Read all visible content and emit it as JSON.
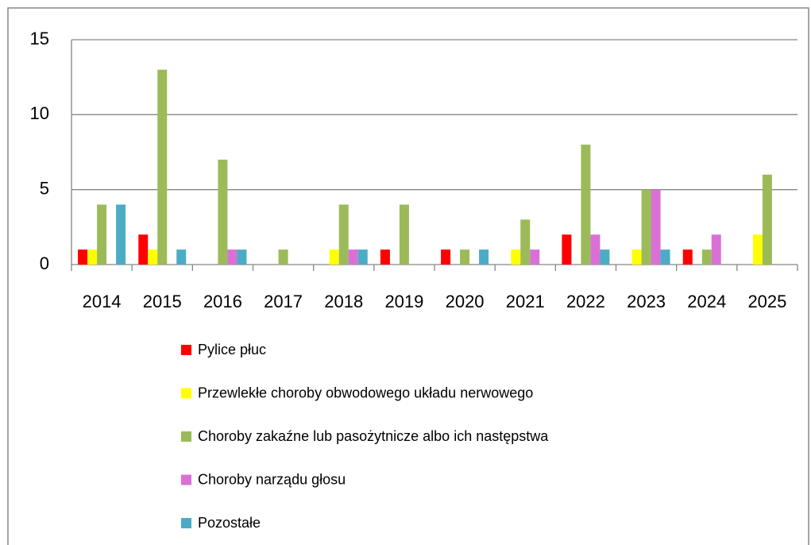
{
  "chart_data": {
    "type": "bar",
    "categories": [
      "2014",
      "2015",
      "2016",
      "2017",
      "2018",
      "2019",
      "2020",
      "2021",
      "2022",
      "2023",
      "2024",
      "2025"
    ],
    "series": [
      {
        "name": "Pylice płuc",
        "color": "#ff0000",
        "values": [
          1,
          2,
          0,
          0,
          0,
          1,
          1,
          0,
          2,
          0,
          1,
          0
        ]
      },
      {
        "name": "Przewlekłe choroby obwodowego układu nerwowego",
        "color": "#ffff00",
        "values": [
          1,
          1,
          0,
          0,
          1,
          0,
          0,
          1,
          0,
          1,
          0,
          2
        ]
      },
      {
        "name": "Choroby zakaźne lub pasożytnicze albo ich następstwa",
        "color": "#9bbb59",
        "values": [
          4,
          13,
          7,
          1,
          4,
          4,
          1,
          3,
          8,
          5,
          1,
          6
        ]
      },
      {
        "name": "Choroby narządu głosu",
        "color": "#da70d6",
        "values": [
          0,
          0,
          1,
          0,
          1,
          0,
          0,
          1,
          2,
          5,
          2,
          0
        ]
      },
      {
        "name": "Pozostałe",
        "color": "#4bacc6",
        "values": [
          4,
          1,
          1,
          0,
          1,
          0,
          1,
          0,
          1,
          1,
          0,
          0
        ]
      }
    ],
    "ylim": [
      0,
      15
    ],
    "yticks": [
      0,
      5,
      10,
      15
    ],
    "grid": true,
    "legend": "bottom"
  }
}
